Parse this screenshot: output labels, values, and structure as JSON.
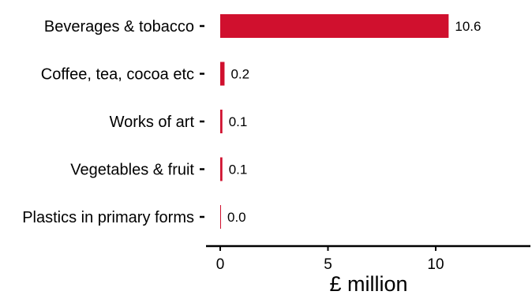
{
  "chart_data": {
    "type": "bar",
    "orientation": "horizontal",
    "categories": [
      "Beverages & tobacco",
      "Coffee, tea, cocoa etc",
      "Works of art",
      "Vegetables & fruit",
      "Plastics in primary forms"
    ],
    "values": [
      10.6,
      0.2,
      0.1,
      0.1,
      0.0
    ],
    "value_labels": [
      "10.6",
      "0.2",
      "0.1",
      "0.1",
      "0.0"
    ],
    "title": "",
    "xlabel": "£ million",
    "ylabel": "",
    "xlim": [
      0,
      14.3
    ],
    "xticks": [
      0,
      5,
      10
    ],
    "xtick_labels": [
      "0",
      "5",
      "10"
    ],
    "grid": false,
    "legend": "none",
    "bar_color": "#d0102e"
  }
}
